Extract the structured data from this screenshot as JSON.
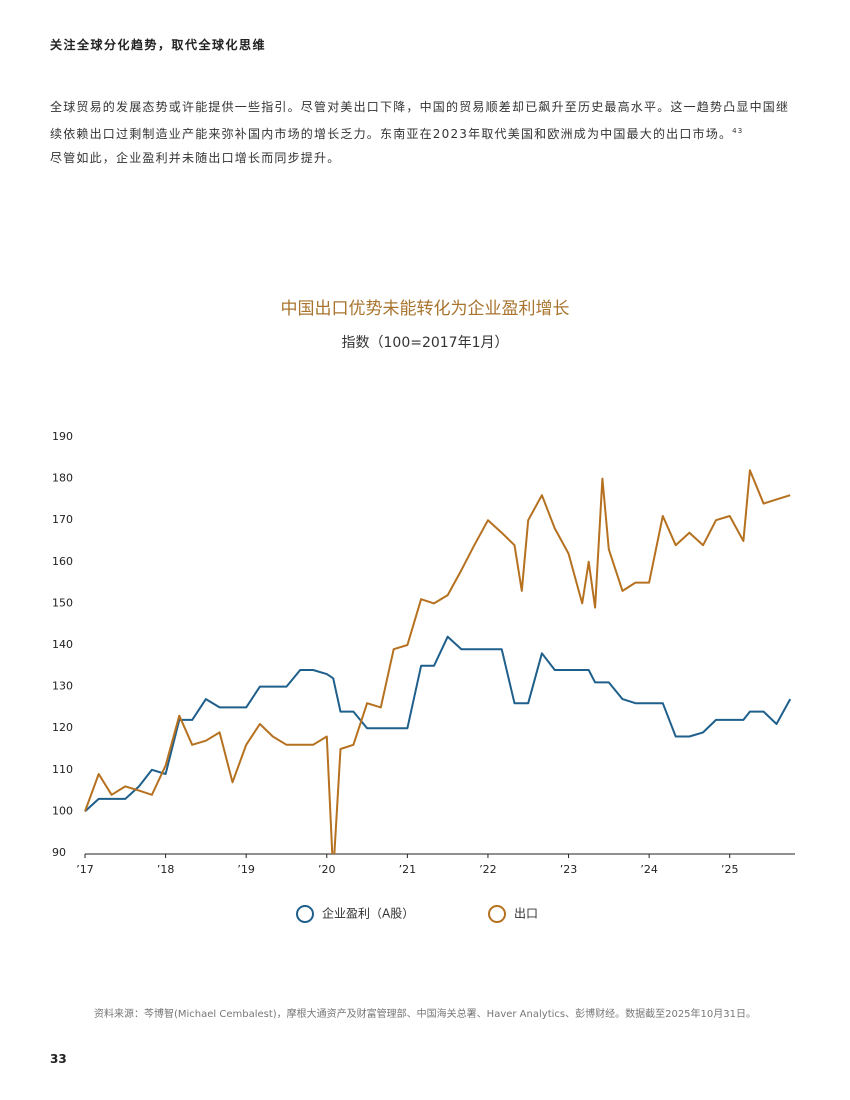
{
  "header": {
    "title": "关注全球分化趋势，取代全球化思维"
  },
  "paragraph": {
    "text": "全球贸易的发展态势或许能提供一些指引。尽管对美出口下降，中国的贸易顺差却已飙升至历史最高水平。这一趋势凸显中国继续依赖出口过剩制造业产能来弥补国内市场的增长乏力。东南亚在2023年取代美国和欧洲成为中国最大的出口市场。",
    "footnote": "43",
    "text_after": "尽管如此，企业盈利并未随出口增长而同步提升。"
  },
  "chart_data": {
    "type": "line",
    "title": "中国出口优势未能转化为企业盈利增长",
    "subtitle": "指数（100=2017年1月）",
    "x": [
      2017,
      2017.17,
      2017.33,
      2017.5,
      2017.67,
      2017.83,
      2018,
      2018.17,
      2018.33,
      2018.5,
      2018.67,
      2018.83,
      2019,
      2019.17,
      2019.33,
      2019.5,
      2019.67,
      2019.83,
      2020,
      2020.08,
      2020.17,
      2020.33,
      2020.5,
      2020.67,
      2020.83,
      2021,
      2021.17,
      2021.33,
      2021.5,
      2021.67,
      2021.83,
      2022,
      2022.17,
      2022.33,
      2022.42,
      2022.5,
      2022.67,
      2022.83,
      2023,
      2023.17,
      2023.25,
      2023.33,
      2023.42,
      2023.5,
      2023.67,
      2023.83,
      2024,
      2024.17,
      2024.33,
      2024.5,
      2024.67,
      2024.83,
      2025,
      2025.17,
      2025.25,
      2025.42,
      2025.58,
      2025.75
    ],
    "series": [
      {
        "name": "企业盈利（A股）",
        "color": "#1f5f8b",
        "values": [
          100,
          103,
          103,
          103,
          106,
          110,
          109,
          122,
          122,
          127,
          125,
          125,
          125,
          130,
          130,
          130,
          134,
          134,
          133,
          132,
          124,
          124,
          120,
          120,
          120,
          120,
          135,
          135,
          142,
          139,
          139,
          139,
          139,
          126,
          126,
          126,
          138,
          134,
          134,
          134,
          134,
          131,
          131,
          131,
          127,
          126,
          126,
          126,
          118,
          118,
          119,
          122,
          122,
          122,
          124,
          124,
          121,
          127
        ]
      },
      {
        "name": "出口",
        "color": "#b5711f",
        "values": [
          100,
          109,
          104,
          106,
          105,
          104,
          111,
          123,
          116,
          117,
          119,
          107,
          116,
          121,
          118,
          116,
          116,
          116,
          118,
          85,
          115,
          116,
          126,
          125,
          139,
          140,
          151,
          150,
          152,
          158,
          164,
          170,
          167,
          164,
          153,
          170,
          176,
          168,
          162,
          150,
          160,
          149,
          180,
          163,
          153,
          155,
          155,
          171,
          164,
          167,
          164,
          170,
          171,
          165,
          182,
          174,
          175,
          176
        ]
      }
    ],
    "xlim": [
      2017,
      2025.81
    ],
    "xticks": [
      {
        "value": 2017,
        "label": "’17"
      },
      {
        "value": 2018,
        "label": "’18"
      },
      {
        "value": 2019,
        "label": "’19"
      },
      {
        "value": 2020,
        "label": "’20"
      },
      {
        "value": 2021,
        "label": "’21"
      },
      {
        "value": 2022,
        "label": "’22"
      },
      {
        "value": 2023,
        "label": "’23"
      },
      {
        "value": 2024,
        "label": "’24"
      },
      {
        "value": 2025,
        "label": "’25"
      }
    ],
    "ylim": [
      90,
      190
    ],
    "yticks": [
      90,
      100,
      110,
      120,
      130,
      140,
      150,
      160,
      170,
      180,
      190
    ],
    "grid": false
  },
  "source": "资料来源：芩博智(Michael Cembalest)，摩根大通资产及财富管理部、中国海关总署、Haver Analytics、彭博财经。数据截至2025年10月31日。",
  "page_number": "33"
}
